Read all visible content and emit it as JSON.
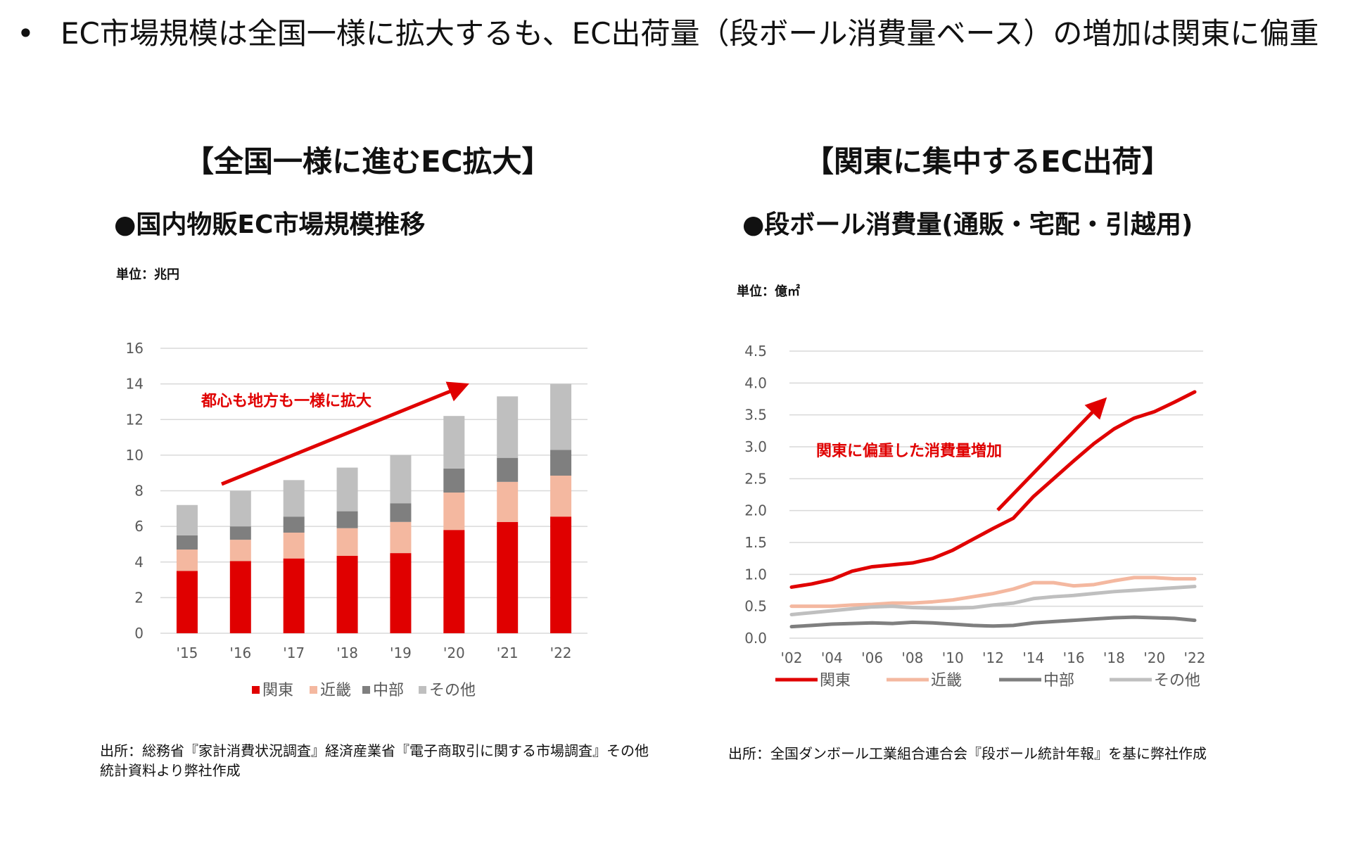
{
  "headline": {
    "bullet": "•",
    "text": "EC市場規模は全国一様に拡大するも、EC出荷量（段ボール消費量ベース）の増加は関東に偏重"
  },
  "panels": [
    {
      "title": "【全国一様に進むEC拡大】"
    },
    {
      "title": "【関東に集中するEC出荷】"
    }
  ],
  "colors": {
    "kanto": "#e00000",
    "kinki": "#f4b8a0",
    "chubu": "#7f7f7f",
    "other": "#bfbfbf",
    "arrow": "#e00000",
    "grid": "#d9d9d9"
  },
  "chart_data": [
    {
      "type": "bar",
      "stacked": true,
      "title": "●国内物販EC市場規模推移",
      "unit": "単位：兆円",
      "categories": [
        "'15",
        "'16",
        "'17",
        "'18",
        "'19",
        "'20",
        "'21",
        "'22"
      ],
      "series": [
        {
          "name": "関東",
          "values": [
            3.5,
            4.05,
            4.2,
            4.35,
            4.5,
            5.8,
            6.25,
            6.55
          ]
        },
        {
          "name": "近畿",
          "values": [
            1.2,
            1.2,
            1.45,
            1.55,
            1.75,
            2.1,
            2.25,
            2.3
          ]
        },
        {
          "name": "中部",
          "values": [
            0.8,
            0.75,
            0.9,
            0.95,
            1.05,
            1.35,
            1.35,
            1.45
          ]
        },
        {
          "name": "その他",
          "values": [
            1.7,
            2.0,
            2.05,
            2.45,
            2.7,
            2.95,
            3.45,
            3.7
          ]
        }
      ],
      "yticks": [
        0,
        2,
        4,
        6,
        8,
        10,
        12,
        14,
        16
      ],
      "ylim": [
        0,
        16
      ],
      "annotation": "都心も地方も一様に拡大",
      "source": "出所：総務省『家計消費状況調査』経済産業省『電子商取引に関する市場調査』その他統計資料より弊社作成"
    },
    {
      "type": "line",
      "title": "●段ボール消費量(通販・宅配・引越用)",
      "unit": "単位：億㎡",
      "x": [
        2002,
        2003,
        2004,
        2005,
        2006,
        2007,
        2008,
        2009,
        2010,
        2011,
        2012,
        2013,
        2014,
        2015,
        2016,
        2017,
        2018,
        2019,
        2020,
        2021,
        2022
      ],
      "xticklabels": [
        "'02",
        "'04",
        "'06",
        "'08",
        "'10",
        "'12",
        "'14",
        "'16",
        "'18",
        "'20",
        "'22"
      ],
      "series": [
        {
          "name": "関東",
          "values": [
            0.8,
            0.85,
            0.92,
            1.05,
            1.12,
            1.15,
            1.18,
            1.25,
            1.38,
            1.55,
            1.72,
            1.88,
            2.22,
            2.5,
            2.78,
            3.05,
            3.28,
            3.45,
            3.55,
            3.7,
            3.86
          ]
        },
        {
          "name": "近畿",
          "values": [
            0.5,
            0.5,
            0.5,
            0.52,
            0.53,
            0.55,
            0.55,
            0.57,
            0.6,
            0.65,
            0.7,
            0.77,
            0.87,
            0.87,
            0.82,
            0.84,
            0.9,
            0.95,
            0.95,
            0.93,
            0.93
          ]
        },
        {
          "name": "中部",
          "values": [
            0.18,
            0.2,
            0.22,
            0.23,
            0.24,
            0.23,
            0.25,
            0.24,
            0.22,
            0.2,
            0.19,
            0.2,
            0.24,
            0.26,
            0.28,
            0.3,
            0.32,
            0.33,
            0.32,
            0.31,
            0.28
          ]
        },
        {
          "name": "その他",
          "values": [
            0.37,
            0.4,
            0.43,
            0.46,
            0.49,
            0.5,
            0.48,
            0.47,
            0.47,
            0.48,
            0.52,
            0.55,
            0.62,
            0.65,
            0.67,
            0.7,
            0.73,
            0.75,
            0.77,
            0.79,
            0.81
          ]
        }
      ],
      "yticks": [
        "0.0",
        "0.5",
        "1.0",
        "1.5",
        "2.0",
        "2.5",
        "3.0",
        "3.5",
        "4.0",
        "4.5"
      ],
      "ylim": [
        0,
        4.5
      ],
      "annotation": "関東に偏重した消費量増加",
      "source": "出所：全国ダンボール工業組合連合会『段ボール統計年報』を基に弊社作成"
    }
  ]
}
